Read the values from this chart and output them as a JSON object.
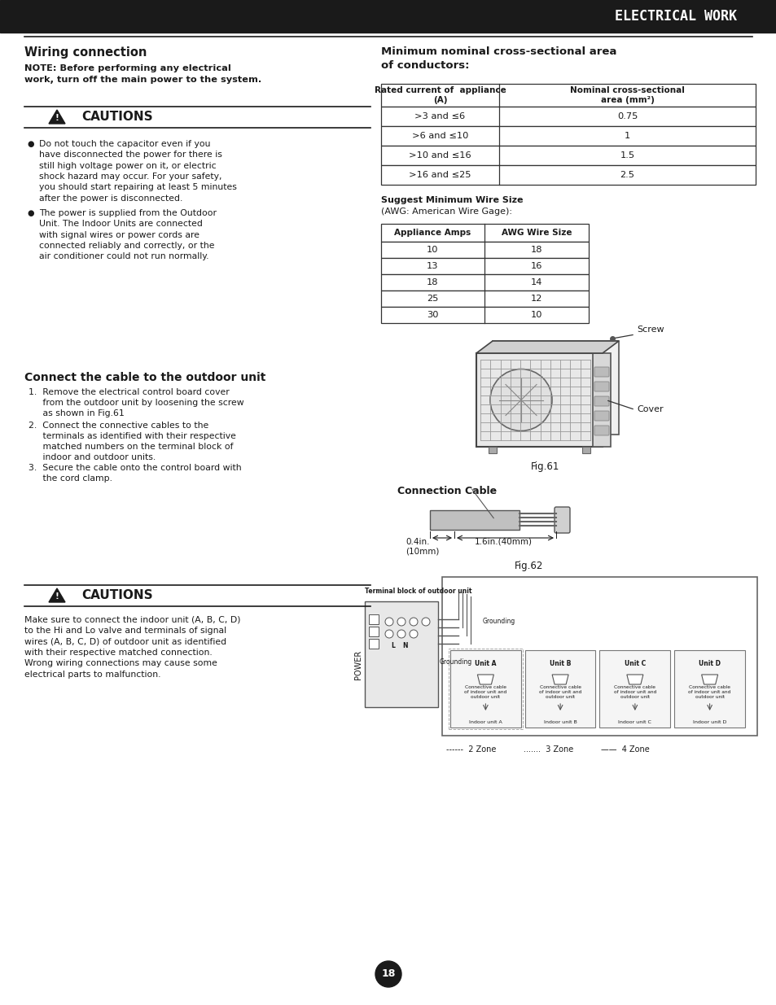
{
  "page_title": "ELECTRICAL WORK",
  "section1_title": "Wiring connection",
  "note_text": "NOTE: Before performing any electrical\nwork, turn off the main power to the system.",
  "cautions_title": "CAUTIONS",
  "caution_bullets": [
    "Do not touch the capacitor even if you\nhave disconnected the power for there is\nstill high voltage power on it, or electric\nshock hazard may occur. For your safety,\nyou should start repairing at least 5 minutes\nafter the power is disconnected.",
    "The power is supplied from the Outdoor\nUnit. The Indoor Units are connected\nwith signal wires or power cords are\nconnected reliably and correctly, or the\nair conditioner could not run normally."
  ],
  "table1_title": "Minimum nominal cross-sectional area\nof conductors:",
  "table1_col1_header": "Rated current of  appliance\n(A)",
  "table1_col2_header": "Nominal cross-sectional\narea (mm²)",
  "table1_rows": [
    [
      ">3 and ≤6",
      "0.75"
    ],
    [
      ">6 and ≤10",
      "1"
    ],
    [
      ">10 and ≤16",
      "1.5"
    ],
    [
      ">16 and ≤25",
      "2.5"
    ]
  ],
  "table2_subtitle_bold": "Suggest Minimum Wire Size",
  "table2_subtitle_normal": "(AWG: American Wire Gage):",
  "table2_col1_header": "Appliance Amps",
  "table2_col2_header": "AWG Wire Size",
  "table2_rows": [
    [
      "10",
      "18"
    ],
    [
      "13",
      "16"
    ],
    [
      "18",
      "14"
    ],
    [
      "25",
      "12"
    ],
    [
      "30",
      "10"
    ]
  ],
  "fig61_caption": "Fig.61",
  "screw_label": "Screw",
  "cover_label": "Cover",
  "section2_title": "Connect the cable to the outdoor unit",
  "step1": "1.  Remove the electrical control board cover\n     from the outdoor unit by loosening the screw\n     as shown in Fig.61",
  "step2": "2.  Connect the connective cables to the\n     terminals as identified with their respective\n     matched numbers on the terminal block of\n     indoor and outdoor units.",
  "step3": "3.  Secure the cable onto the control board with\n     the cord clamp.",
  "conn_cable_label": "Connection Cable",
  "dim1_label": "0.4in.",
  "dim1_sub": "(10mm)",
  "dim2_label": "1.6in.(40mm)",
  "fig62_caption": "Fig.62",
  "terminal_label": "Terminal block of outdoor unit",
  "grounding1": "Grounding",
  "grounding2": "Grounding",
  "power_label": "POWER",
  "unit_labels": [
    "Unit A",
    "Unit B",
    "Unit C",
    "Unit D"
  ],
  "connective_text": "Connective cable\nof indoor unit and\noutdoor unit",
  "indoor_labels": [
    "Indoor unit A",
    "Indoor unit B",
    "Indoor unit C",
    "Indoor unit D"
  ],
  "zone_labels": [
    "------ 2 Zone",
    "....... 3 Zone",
    "— 4 Zone"
  ],
  "cautions2_title": "CAUTIONS",
  "caution2_text": "Make sure to connect the indoor unit (A, B, C, D)\nto the Hi and Lo valve and terminals of signal\nwires (A, B, C, D) of outdoor unit as identified\nwith their respective matched connection.\nWrong wiring connections may cause some\nelectrical parts to malfunction.",
  "page_number": "18",
  "bg_color": "#ffffff",
  "text_color": "#1a1a1a",
  "dark_color": "#1a1a1a",
  "line_color": "#333333"
}
